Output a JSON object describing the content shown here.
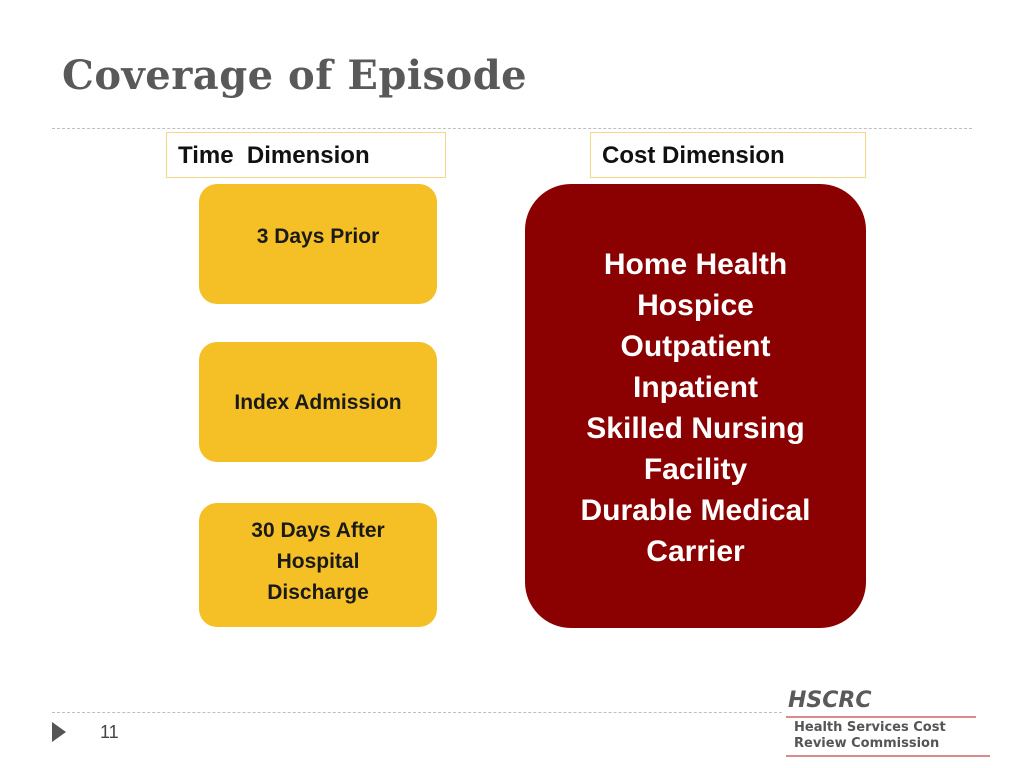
{
  "slide": {
    "title": "Coverage of Episode",
    "page_number": "11"
  },
  "time_dimension": {
    "label": "Time  Dimension",
    "boxes": [
      "3 Days Prior",
      "Index Admission",
      "30 Days After Hospital Discharge"
    ]
  },
  "cost_dimension": {
    "label": "Cost Dimension",
    "items": [
      "Home Health",
      "Hospice",
      "Outpatient",
      "Inpatient",
      "Skilled Nursing",
      "Facility",
      "Durable Medical",
      "Carrier"
    ]
  },
  "logo": {
    "acronym": "HSCRC",
    "line1": "Health Services Cost",
    "line2": "Review Commission"
  },
  "colors": {
    "yellow_box": "#f4c026",
    "red_box": "#8b0000",
    "title": "#595959"
  }
}
